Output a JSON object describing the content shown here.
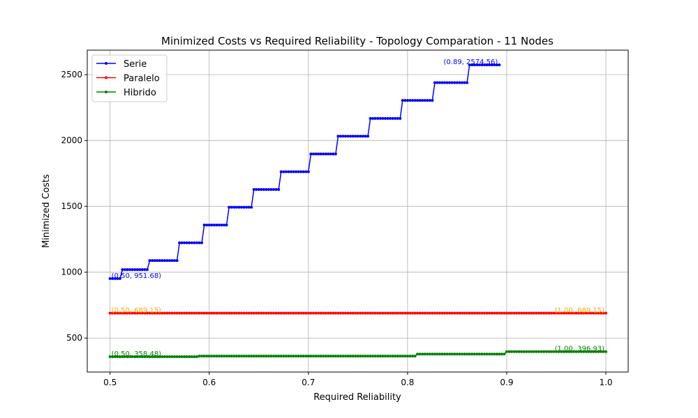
{
  "chart_data": {
    "type": "line",
    "title": "Minimized Costs vs Required Reliability - Topology Comparation - 11 Nodes",
    "xlabel": "Required Reliability",
    "ylabel": "Minimized Costs",
    "xlim": [
      0.477,
      1.0225
    ],
    "ylim": [
      242,
      2686
    ],
    "xticks": [
      0.5,
      0.6,
      0.7,
      0.8,
      0.9,
      1.0
    ],
    "xtick_labels": [
      "0.5",
      "0.6",
      "0.7",
      "0.8",
      "0.9",
      "1.0"
    ],
    "yticks": [
      500,
      1000,
      1500,
      2000,
      2500
    ],
    "ytick_labels": [
      "500",
      "1000",
      "1500",
      "2000",
      "2500"
    ],
    "grid": true,
    "legend_position": "upper-left",
    "x_start": 0.5,
    "x_step": 0.0025,
    "series": [
      {
        "name": "Serie",
        "color": "#0000ff",
        "x_end": 0.8925,
        "steps": [
          {
            "x_from": 0.5,
            "y": 951.68
          },
          {
            "x_from": 0.5125,
            "y": 1019.7
          },
          {
            "x_from": 0.54,
            "y": 1088.5
          },
          {
            "x_from": 0.57,
            "y": 1223.1
          },
          {
            "x_from": 0.595,
            "y": 1358.0
          },
          {
            "x_from": 0.62,
            "y": 1493.0
          },
          {
            "x_from": 0.645,
            "y": 1628.1
          },
          {
            "x_from": 0.6725,
            "y": 1762.8
          },
          {
            "x_from": 0.7025,
            "y": 1897.7
          },
          {
            "x_from": 0.73,
            "y": 2032.6
          },
          {
            "x_from": 0.7625,
            "y": 2167.4
          },
          {
            "x_from": 0.795,
            "y": 2304.4
          },
          {
            "x_from": 0.8275,
            "y": 2439.5
          },
          {
            "x_from": 0.8625,
            "y": 2574.56
          }
        ]
      },
      {
        "name": "Paralelo",
        "color": "#ff0000",
        "x_end": 1.0,
        "steps": [
          {
            "x_from": 0.5,
            "y": 689.15
          }
        ]
      },
      {
        "name": "Hibrido",
        "color": "#008000",
        "x_end": 1.0,
        "steps": [
          {
            "x_from": 0.5,
            "y": 358.48
          },
          {
            "x_from": 0.59,
            "y": 363.2
          },
          {
            "x_from": 0.81,
            "y": 378.5
          },
          {
            "x_from": 0.9,
            "y": 396.93
          }
        ]
      }
    ],
    "annotations": [
      {
        "text": "(0.89, 2574.56)",
        "x": 0.8925,
        "y": 2574.56,
        "color": "#0000ff",
        "anchor": "end"
      },
      {
        "text": "(0.50, 951.68)",
        "x": 0.5,
        "y": 951.68,
        "color": "#0000ff",
        "anchor": "start"
      },
      {
        "text": "(0.50, 689.15)",
        "x": 0.5,
        "y": 689.15,
        "color": "#ffa500",
        "anchor": "start"
      },
      {
        "text": "(1.00, 689.15)",
        "x": 1.0,
        "y": 689.15,
        "color": "#ffa500",
        "anchor": "end"
      },
      {
        "text": "(0.50, 358.48)",
        "x": 0.5,
        "y": 358.48,
        "color": "#008000",
        "anchor": "start"
      },
      {
        "text": "(1.00, 396.93)",
        "x": 1.0,
        "y": 396.93,
        "color": "#008000",
        "anchor": "end"
      }
    ]
  }
}
